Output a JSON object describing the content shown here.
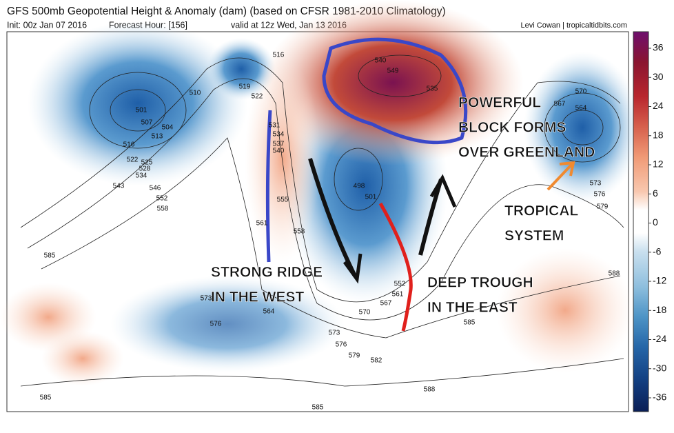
{
  "header": {
    "title": "GFS 500mb Geopotential Height & Anomaly (dam) (based on CFSR 1981-2010 Climatology)",
    "init": "Init: 00z Jan 07 2016",
    "forecast_hour": "Forecast Hour: [156]",
    "valid": "valid at 12z Wed, Jan 13 2016",
    "credit": "Levi Cowan | tropicaltidbits.com"
  },
  "colorbar": {
    "ticks": [
      36,
      30,
      24,
      18,
      12,
      6,
      0,
      -6,
      -12,
      -18,
      -24,
      -30,
      -36
    ]
  },
  "annotations": {
    "block": [
      "POWERFUL",
      "BLOCK FORMS",
      "OVER GREENLAND"
    ],
    "tropical": [
      "TROPICAL",
      "SYSTEM"
    ],
    "ridge": [
      "STRONG RIDGE",
      "IN THE WEST"
    ],
    "trough": [
      "DEEP TROUGH",
      "IN THE EAST"
    ]
  },
  "contour_labels": [
    "501",
    "507",
    "504",
    "513",
    "516",
    "522",
    "525",
    "528",
    "534",
    "543",
    "546",
    "552",
    "558",
    "510",
    "516",
    "519",
    "522",
    "498",
    "501",
    "570",
    "567",
    "564",
    "573",
    "576",
    "579",
    "585",
    "588",
    "585",
    "576",
    "573",
    "570",
    "564",
    "567",
    "561",
    "552",
    "573",
    "576",
    "579",
    "582",
    "588",
    "585",
    "585",
    "555",
    "558",
    "561",
    "540",
    "537",
    "534",
    "531",
    "535",
    "540",
    "549"
  ]
}
